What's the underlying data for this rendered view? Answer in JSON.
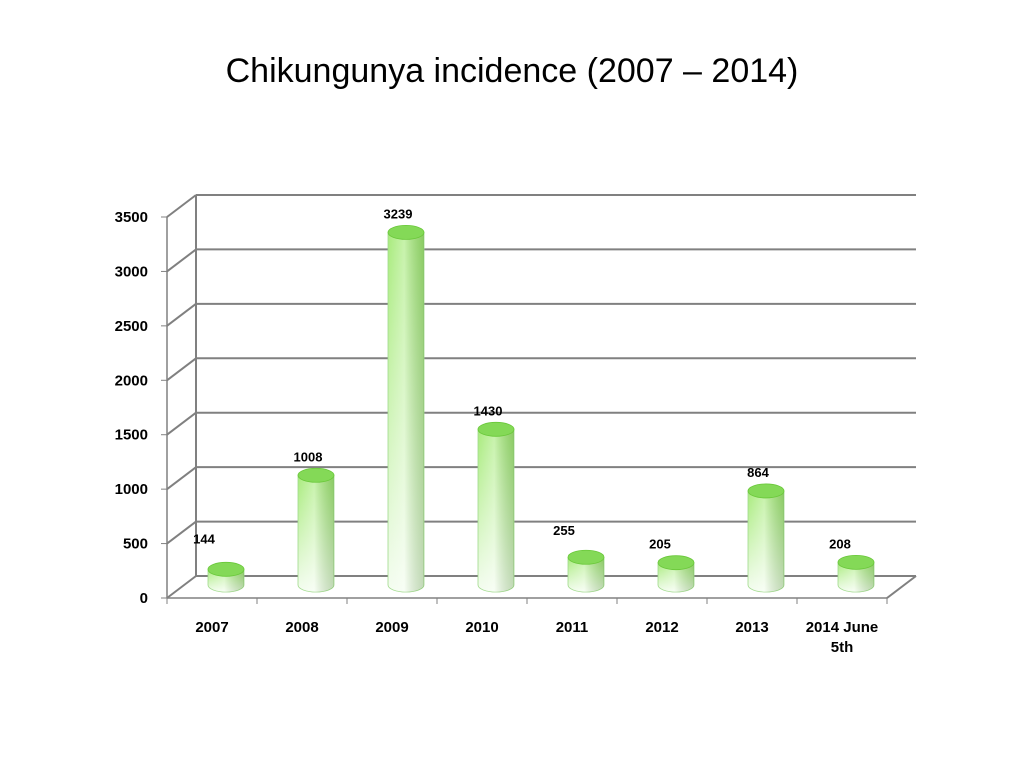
{
  "title": "Chikungunya incidence (2007 – 2014)",
  "colors": {
    "bar_light": "#f4fdf0",
    "bar_mid": "#a8eb7c",
    "bar_dark": "#6ac83a",
    "bar_top": "#84d957",
    "gridline": "#808080"
  },
  "chart_data": {
    "type": "bar",
    "title": "Chikungunya incidence (2007 – 2014)",
    "categories": [
      "2007",
      "2008",
      "2009",
      "2010",
      "2011",
      "2012",
      "2013",
      "2014 June 5th"
    ],
    "category_lines": [
      [
        "2007"
      ],
      [
        "2008"
      ],
      [
        "2009"
      ],
      [
        "2010"
      ],
      [
        "2011"
      ],
      [
        "2012"
      ],
      [
        "2013"
      ],
      [
        "2014 June",
        "5th"
      ]
    ],
    "values": [
      144,
      1008,
      3239,
      1430,
      255,
      205,
      864,
      208
    ],
    "value_labels": [
      "144",
      "1008",
      "3239",
      "1430",
      "255",
      "205",
      "864",
      "208"
    ],
    "yticks": [
      "0",
      "500",
      "1000",
      "1500",
      "2000",
      "2500",
      "3000",
      "3500"
    ],
    "ylim": [
      0,
      3500
    ],
    "grid": true,
    "legend": "none",
    "style": "3d-cylinder"
  }
}
